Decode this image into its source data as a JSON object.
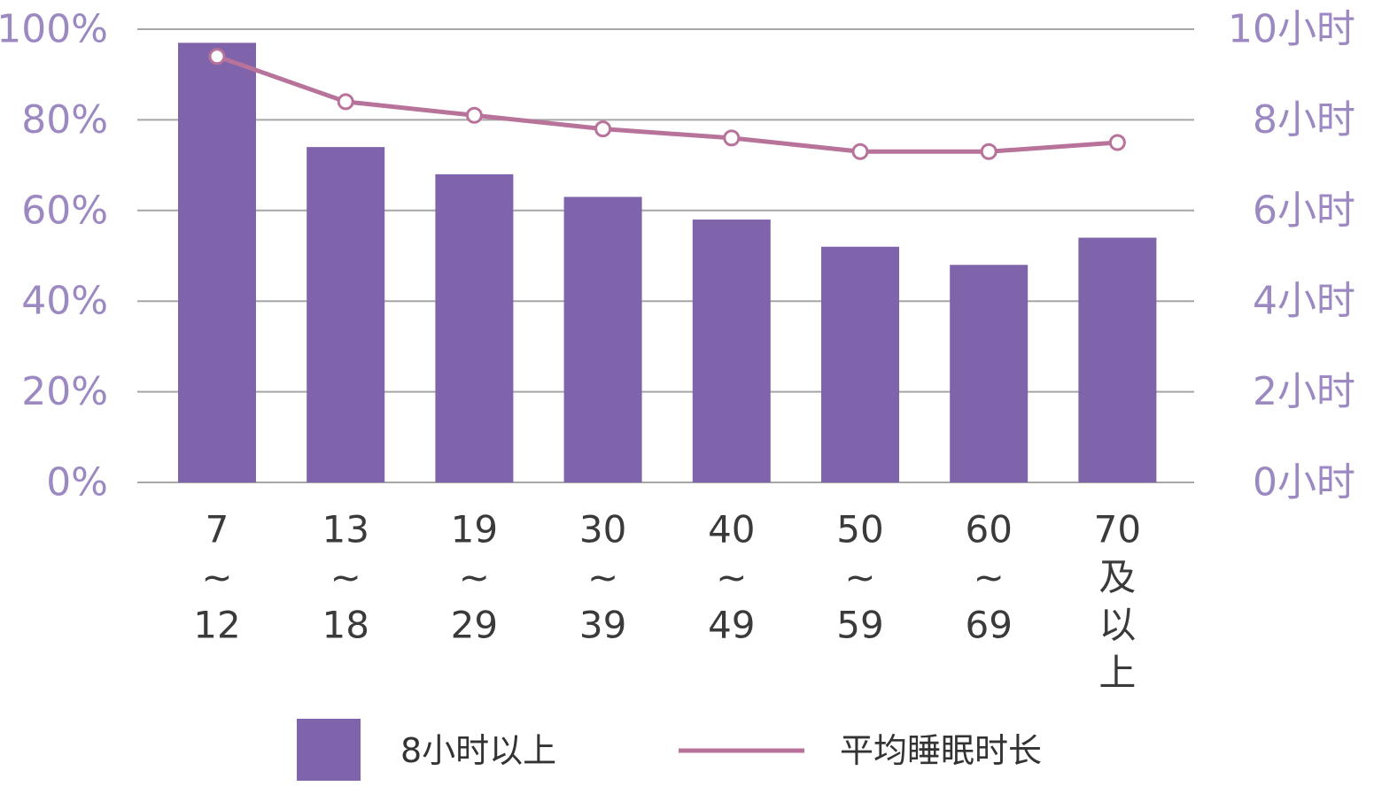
{
  "chart_data": {
    "type": "bar",
    "categories": [
      [
        "7",
        "~",
        "12"
      ],
      [
        "13",
        "~",
        "18"
      ],
      [
        "19",
        "~",
        "29"
      ],
      [
        "30",
        "~",
        "39"
      ],
      [
        "40",
        "~",
        "49"
      ],
      [
        "50",
        "~",
        "59"
      ],
      [
        "60",
        "~",
        "69"
      ],
      [
        "70",
        "及",
        "以",
        "上"
      ]
    ],
    "series": [
      {
        "name": "8小时以上",
        "type": "bar",
        "axis": "left",
        "color": "#8064ab",
        "values": [
          97,
          74,
          68,
          63,
          58,
          52,
          48,
          54
        ]
      },
      {
        "name": "平均睡眠时长",
        "type": "line",
        "axis": "right",
        "color": "#b8739b",
        "marker": "hollow-circle",
        "values": [
          9.4,
          8.4,
          8.1,
          7.8,
          7.6,
          7.3,
          7.3,
          7.5
        ]
      }
    ],
    "y_left": {
      "ticks": [
        "0%",
        "20%",
        "40%",
        "60%",
        "80%",
        "100%"
      ],
      "ylim": [
        0,
        100
      ]
    },
    "y_right": {
      "ticks": [
        "0小时",
        "2小时",
        "4小时",
        "6小时",
        "8小时",
        "10小时"
      ],
      "ylim": [
        0,
        10
      ]
    },
    "grid": true,
    "legend_position": "bottom",
    "colors": {
      "tick_text": "#9c89c2",
      "category_text": "#3a3a3a",
      "grid": "#a6a6a6"
    }
  }
}
